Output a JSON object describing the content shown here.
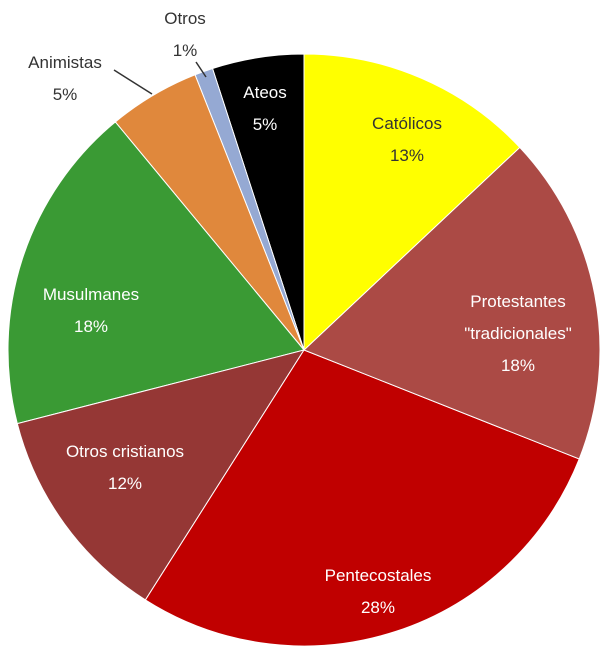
{
  "chart_data": {
    "type": "pie",
    "categories": [
      "Católicos",
      "Protestantes\n\"tradicionales\"",
      "Pentecostales",
      "Otros cristianos",
      "Musulmanes",
      "Animistas",
      "Otros",
      "Ateos"
    ],
    "values": [
      13,
      18,
      28,
      12,
      18,
      5,
      1,
      5
    ],
    "value_labels": [
      "13%",
      "18%",
      "28%",
      "12%",
      "18%",
      "5%",
      "1%",
      "5%"
    ],
    "colors": [
      "#ffff00",
      "#ab4a45",
      "#c00000",
      "#953735",
      "#3a9a34",
      "#e0883c",
      "#95a9d3",
      "#000000"
    ]
  }
}
